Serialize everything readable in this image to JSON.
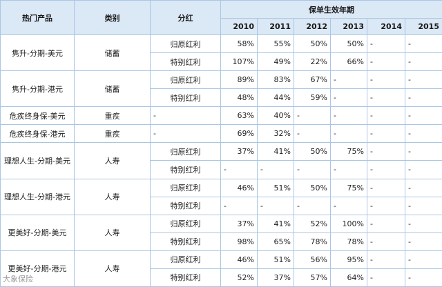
{
  "headers": {
    "product": "热门产品",
    "category": "类别",
    "dividend": "分红",
    "year_group": "保单生效年期",
    "years": [
      "2010",
      "2011",
      "2012",
      "2013",
      "2014",
      "2015"
    ]
  },
  "rows": [
    {
      "product": "隽升-分期-美元",
      "category": "储蓄",
      "items": [
        {
          "type": "归原红利",
          "values": [
            "58%",
            "55%",
            "50%",
            "50%",
            "-",
            "-"
          ]
        },
        {
          "type": "特别红利",
          "values": [
            "107%",
            "49%",
            "22%",
            "66%",
            "-",
            "-"
          ]
        }
      ]
    },
    {
      "product": "隽升-分期-港元",
      "category": "储蓄",
      "items": [
        {
          "type": "归原红利",
          "values": [
            "89%",
            "83%",
            "67%",
            "-",
            "-",
            "-"
          ]
        },
        {
          "type": "特别红利",
          "values": [
            "48%",
            "44%",
            "59%",
            "-",
            "-",
            "-"
          ]
        }
      ]
    },
    {
      "product": "危疾终身保-美元",
      "category": "重疾",
      "items": [
        {
          "type": "-",
          "values": [
            "63%",
            "40%",
            "-",
            "-",
            "-",
            "-"
          ]
        }
      ]
    },
    {
      "product": "危疾终身保-港元",
      "category": "重疾",
      "items": [
        {
          "type": "-",
          "values": [
            "69%",
            "32%",
            "-",
            "-",
            "-",
            "-"
          ]
        }
      ]
    },
    {
      "product": "理想人生-分期-美元",
      "category": "人寿",
      "items": [
        {
          "type": "归原红利",
          "values": [
            "37%",
            "41%",
            "50%",
            "75%",
            "-",
            "-"
          ]
        },
        {
          "type": "特别红利",
          "values": [
            "-",
            "-",
            "-",
            "-",
            "-",
            "-"
          ]
        }
      ]
    },
    {
      "product": "理想人生-分期-港元",
      "category": "人寿",
      "items": [
        {
          "type": "归原红利",
          "values": [
            "46%",
            "51%",
            "50%",
            "75%",
            "-",
            "-"
          ]
        },
        {
          "type": "特别红利",
          "values": [
            "-",
            "-",
            "-",
            "-",
            "-",
            "-"
          ]
        }
      ]
    },
    {
      "product": "更美好-分期-美元",
      "category": "人寿",
      "items": [
        {
          "type": "归原红利",
          "values": [
            "37%",
            "41%",
            "52%",
            "100%",
            "-",
            "-"
          ]
        },
        {
          "type": "特别红利",
          "values": [
            "98%",
            "65%",
            "78%",
            "78%",
            "-",
            "-"
          ]
        }
      ]
    },
    {
      "product": "更美好-分期-港元",
      "category": "人寿",
      "items": [
        {
          "type": "归原红利",
          "values": [
            "46%",
            "51%",
            "56%",
            "95%",
            "-",
            "-"
          ]
        },
        {
          "type": "特别红利",
          "values": [
            "52%",
            "37%",
            "57%",
            "64%",
            "-",
            "-"
          ]
        }
      ]
    }
  ],
  "watermark": "大象保险"
}
